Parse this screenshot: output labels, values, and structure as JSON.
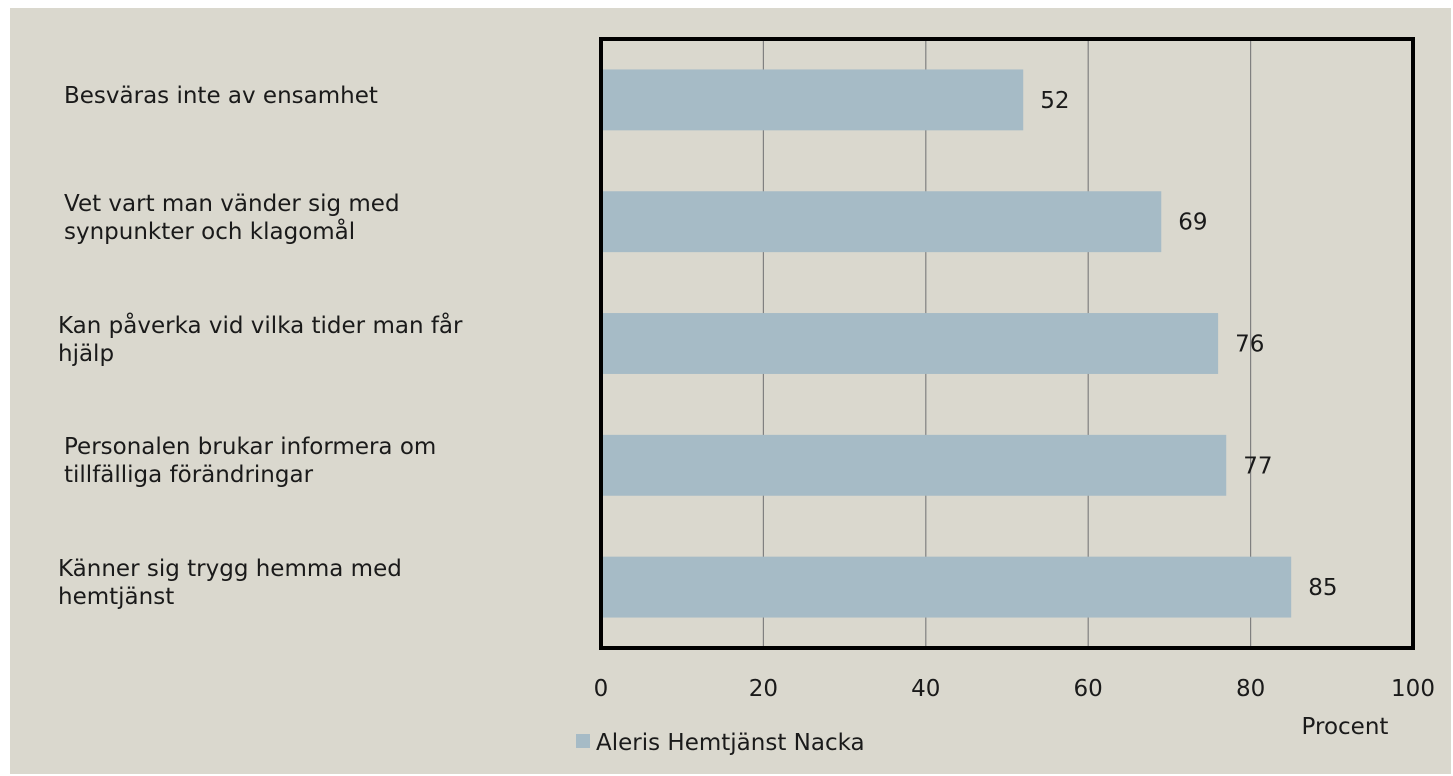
{
  "chart_data": {
    "type": "bar",
    "orientation": "horizontal",
    "categories": [
      "Besväras inte av ensamhet",
      "Vet vart man vänder sig med\nsynpunkter och klagomål",
      "Kan påverka vid vilka tider man får\nhjälp",
      "Personalen brukar informera om\ntillfälliga förändringar",
      "Känner sig trygg hemma med\nhemtjänst"
    ],
    "series": [
      {
        "name": "Aleris Hemtjänst Nacka",
        "values": [
          52,
          69,
          76,
          77,
          85
        ]
      }
    ],
    "data_labels": [
      "52",
      "69",
      "76",
      "77",
      "85"
    ],
    "xlabel": "Procent",
    "xlim": [
      0,
      100
    ],
    "xticks": [
      0,
      20,
      40,
      60,
      80,
      100
    ],
    "xtick_labels": [
      "0",
      "20",
      "40",
      "60",
      "80",
      "100"
    ],
    "grid": "vertical",
    "legend": {
      "position": "bottom-left",
      "entries": [
        "Aleris Hemtjänst Nacka"
      ]
    },
    "colors": {
      "bar": "#a6bbc6",
      "background": "#dad8ce",
      "grid": "#808080",
      "frame": "#000000"
    }
  }
}
